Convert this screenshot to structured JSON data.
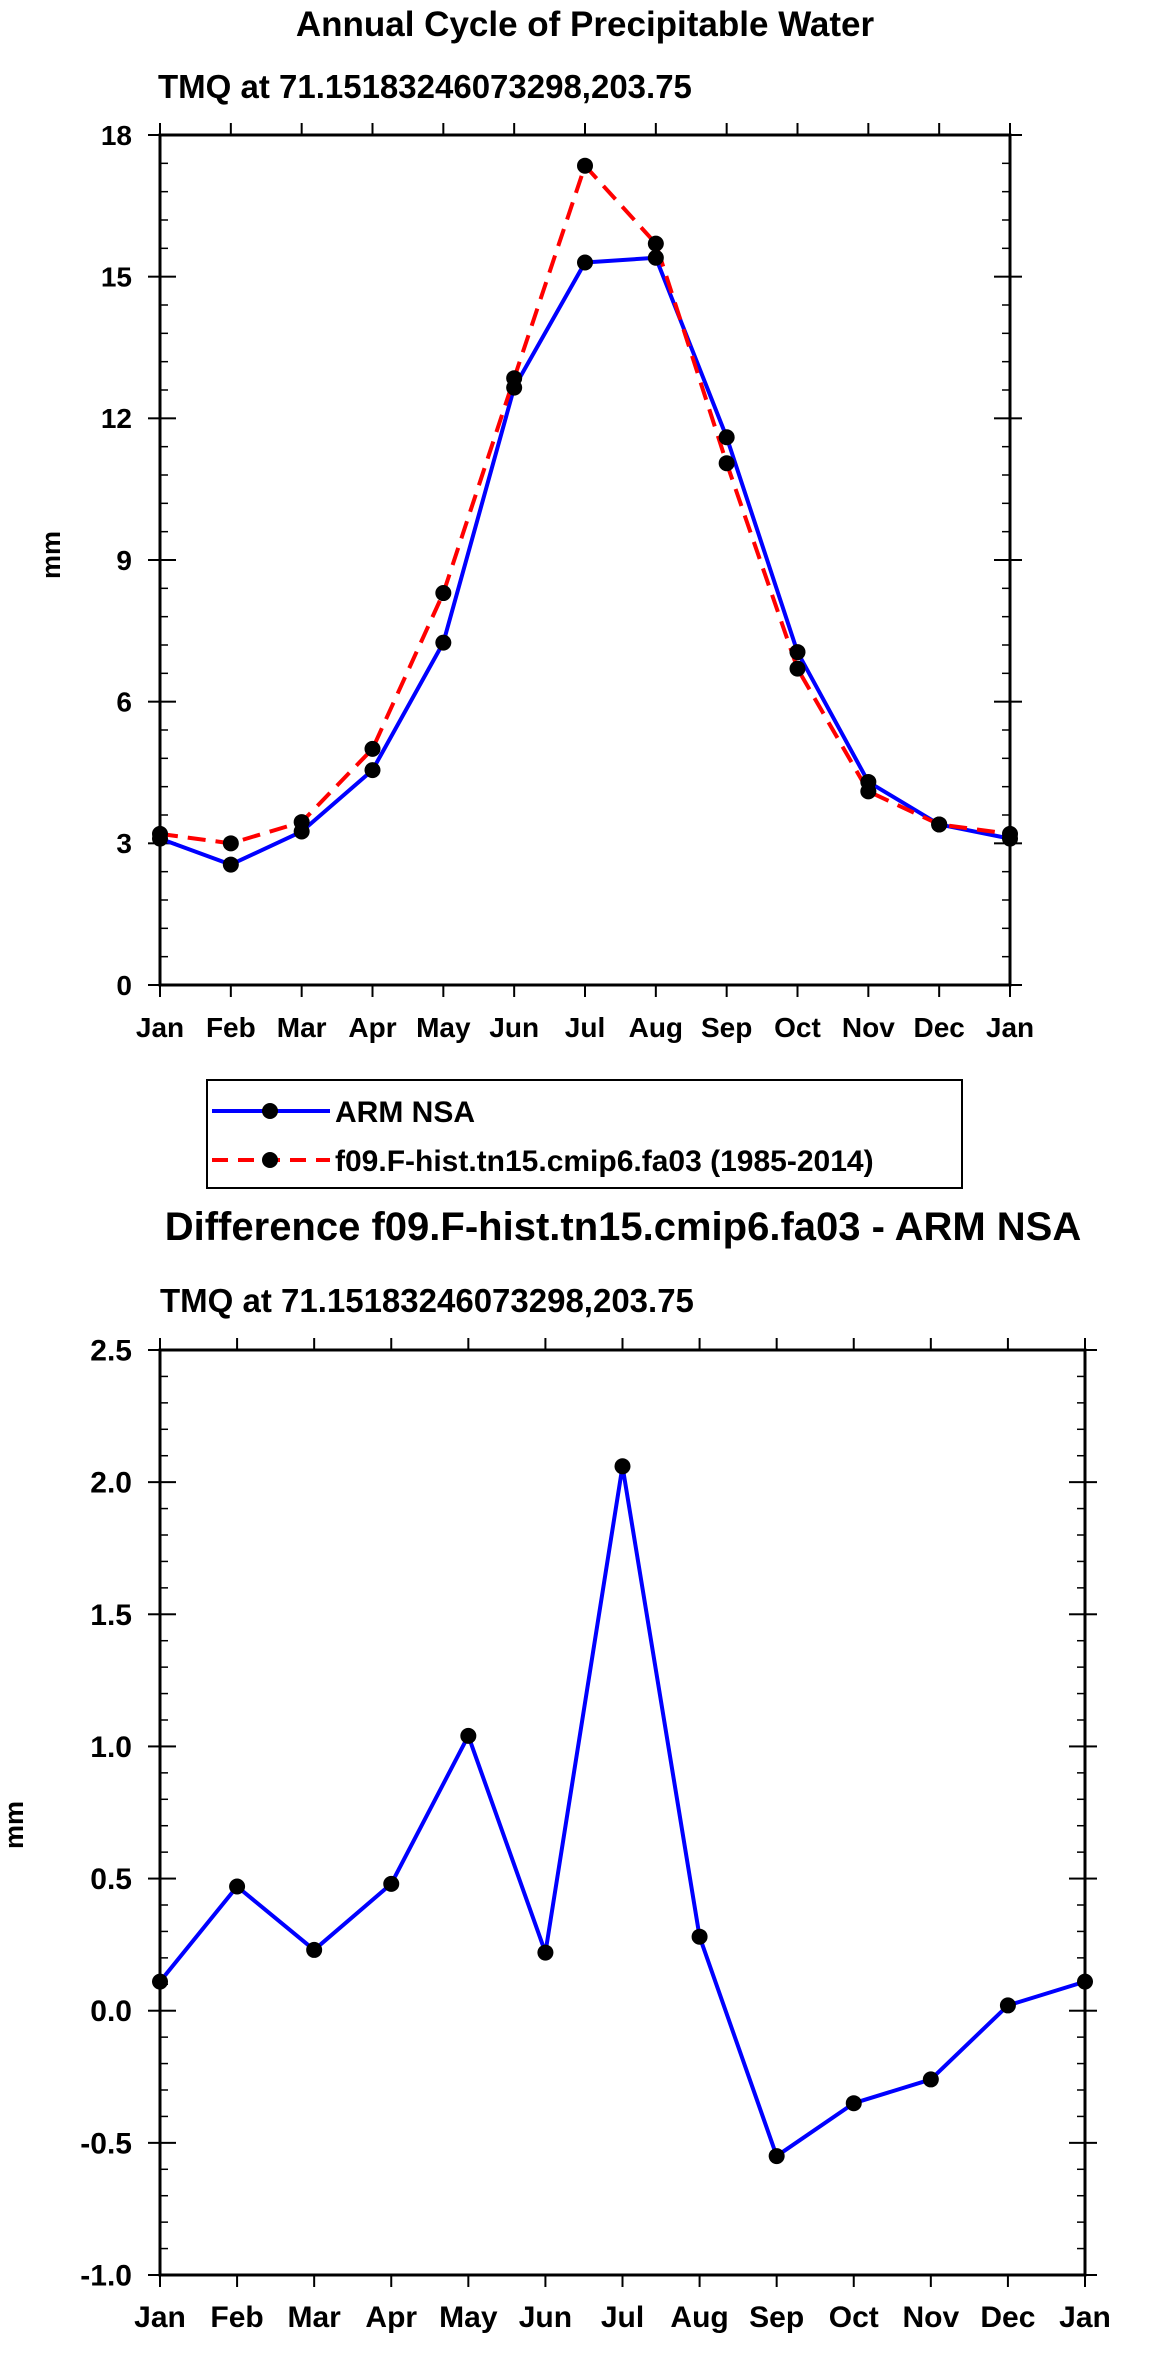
{
  "chart_data": [
    {
      "type": "line",
      "title": "Annual Cycle of Precipitable Water",
      "subtitle": "TMQ at 71.15183246073298,203.75",
      "ylabel": "mm",
      "xlabel": "",
      "categories": [
        "Jan",
        "Feb",
        "Mar",
        "Apr",
        "May",
        "Jun",
        "Jul",
        "Aug",
        "Sep",
        "Oct",
        "Nov",
        "Dec",
        "Jan"
      ],
      "ylim": [
        0,
        18
      ],
      "yticks": [
        "0",
        "3",
        "6",
        "9",
        "12",
        "15",
        "18"
      ],
      "series": [
        {
          "name": "ARM NSA",
          "color": "#0000ff",
          "dash": "solid",
          "values": [
            3.1,
            2.55,
            3.25,
            4.55,
            7.25,
            12.65,
            15.3,
            15.4,
            11.6,
            7.05,
            4.3,
            3.4,
            3.1
          ]
        },
        {
          "name": "f09.F-hist.tn15.cmip6.fa03 (1985-2014)",
          "color": "#ff0000",
          "dash": "dashed",
          "values": [
            3.2,
            3.0,
            3.45,
            5.0,
            8.3,
            12.85,
            17.35,
            15.7,
            11.05,
            6.7,
            4.1,
            3.4,
            3.2
          ]
        }
      ],
      "legend": "below"
    },
    {
      "type": "line",
      "title": "Difference f09.F-hist.tn15.cmip6.fa03 - ARM NSA",
      "subtitle": "TMQ at 71.15183246073298,203.75",
      "ylabel": "mm",
      "xlabel": "",
      "categories": [
        "Jan",
        "Feb",
        "Mar",
        "Apr",
        "May",
        "Jun",
        "Jul",
        "Aug",
        "Sep",
        "Oct",
        "Nov",
        "Dec",
        "Jan"
      ],
      "ylim": [
        -1.0,
        2.5
      ],
      "yticks": [
        "-1.0",
        "-0.5",
        "0.0",
        "0.5",
        "1.0",
        "1.5",
        "2.0",
        "2.5"
      ],
      "series": [
        {
          "name": "Difference",
          "color": "#0000ff",
          "dash": "solid",
          "values": [
            0.11,
            0.47,
            0.23,
            0.48,
            1.04,
            0.22,
            2.06,
            0.28,
            -0.55,
            -0.35,
            -0.26,
            0.02,
            0.11
          ]
        }
      ]
    }
  ]
}
